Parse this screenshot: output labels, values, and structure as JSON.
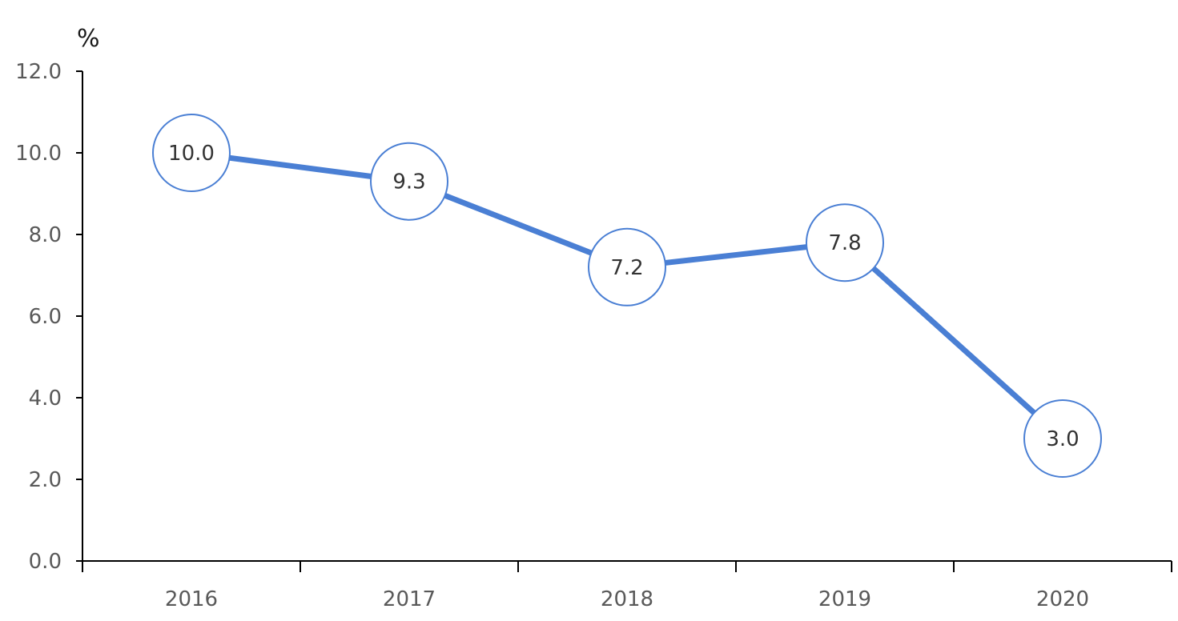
{
  "chart_data": {
    "type": "line",
    "title": "",
    "xlabel": "",
    "ylabel": "%",
    "categories": [
      "2016",
      "2017",
      "2018",
      "2019",
      "2020"
    ],
    "series": [
      {
        "values": [
          10.0,
          9.3,
          7.2,
          7.8,
          3.0
        ],
        "labels": [
          "10.0",
          "9.3",
          "7.2",
          "7.8",
          "3.0"
        ],
        "color": "#4a7fd4"
      }
    ],
    "ylim": [
      0,
      12
    ],
    "yticks": [
      "0.0",
      "2.0",
      "4.0",
      "6.0",
      "8.0",
      "10.0",
      "12.0"
    ],
    "grid": false,
    "legend": "none",
    "marker": "circle",
    "marker_fill": "#ffffff",
    "marker_stroke": "#4a7fd4"
  }
}
